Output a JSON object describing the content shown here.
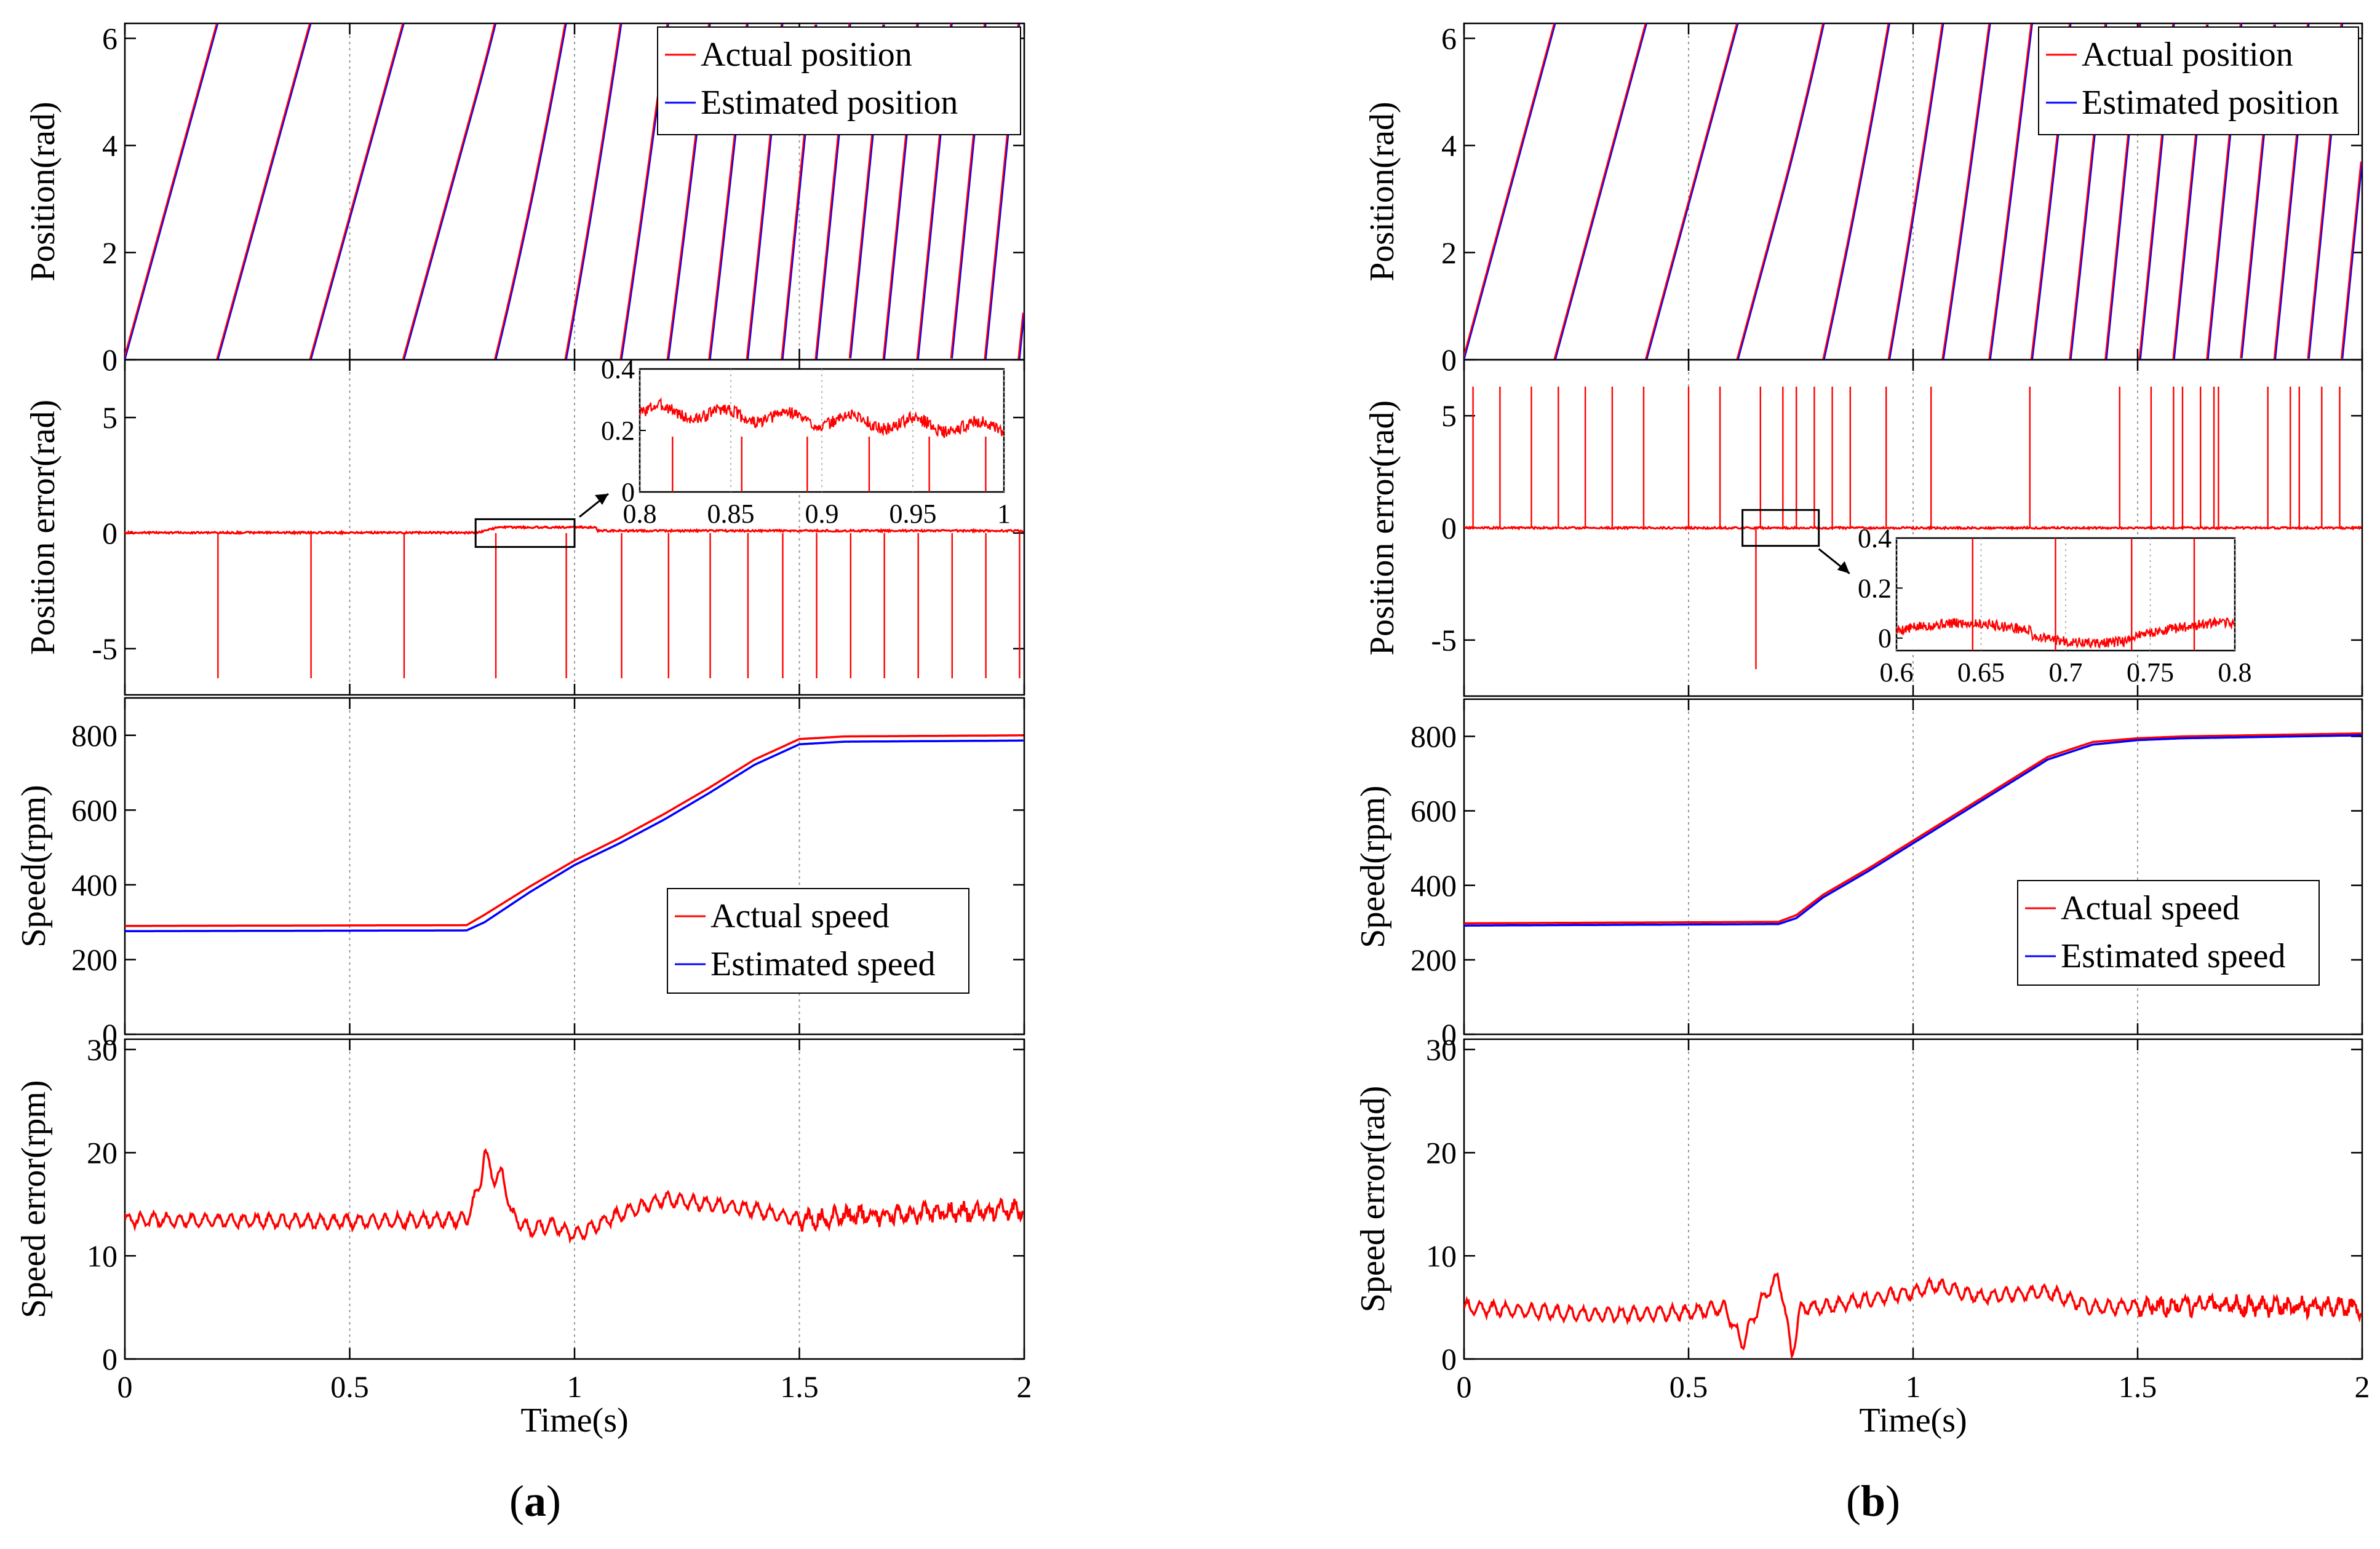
{
  "figure": {
    "colors": {
      "actual": "#ff0000",
      "estimated": "#0000ff",
      "axis": "#000000",
      "grid": "#9a9a9a"
    },
    "xlabel": "Time(s)",
    "x_ticks": [
      "0",
      "0.5",
      "1",
      "1.5",
      "2"
    ]
  },
  "chart_data": [
    {
      "panel": "a",
      "caption": "(a)",
      "subplots": [
        {
          "type": "line",
          "ylabel": "Position(rad)",
          "xlim": [
            0,
            2
          ],
          "ylim": [
            0,
            6.28
          ],
          "y_ticks": [
            "0",
            "2",
            "4",
            "6"
          ],
          "legend": {
            "placement": "top-right",
            "entries": [
              "Actual position",
              "Estimated position"
            ]
          },
          "series": [
            {
              "name": "Actual position",
              "kind": "sawtooth",
              "color": "red"
            },
            {
              "name": "Estimated position",
              "kind": "sawtooth",
              "color": "blue"
            }
          ],
          "speed_profile_rpm": {
            "t": [
              0,
              0.78,
              1.45,
              2
            ],
            "rpm": [
              290,
              290,
              795,
              800
            ]
          }
        },
        {
          "type": "line",
          "ylabel": "Position error(rad)",
          "xlim": [
            0,
            2
          ],
          "ylim": [
            -7,
            7.5
          ],
          "y_ticks": [
            "-5",
            "0",
            "5"
          ],
          "series": [
            {
              "name": "Position error",
              "color": "red",
              "wrap_spikes": -6.28
            }
          ],
          "inset": {
            "xlim": [
              0.8,
              1
            ],
            "ylim": [
              0,
              0.4
            ],
            "x_ticks": [
              "0.8",
              "0.85",
              "0.9",
              "0.95",
              "1"
            ],
            "y_ticks": [
              "0",
              "0.2",
              "0.4"
            ],
            "spike_x": [
              0.818,
              0.856,
              0.892,
              0.926,
              0.959,
              0.99
            ]
          }
        },
        {
          "type": "line",
          "ylabel": "Speed(rpm)",
          "xlim": [
            0,
            2
          ],
          "ylim": [
            0,
            900
          ],
          "y_ticks": [
            "0",
            "200",
            "400",
            "600",
            "800"
          ],
          "legend": {
            "placement": "center-right",
            "entries": [
              "Actual speed",
              "Estimated speed"
            ]
          },
          "series": [
            {
              "name": "Actual speed",
              "x": [
                0,
                0.76,
                0.8,
                0.9,
                1.0,
                1.1,
                1.2,
                1.3,
                1.4,
                1.5,
                1.6,
                2.0
              ],
              "y": [
                290,
                292,
                320,
                395,
                465,
                525,
                590,
                660,
                735,
                790,
                797,
                800
              ]
            },
            {
              "name": "Estimated speed",
              "x": [
                0,
                0.76,
                0.8,
                0.9,
                1.0,
                1.1,
                1.2,
                1.3,
                1.4,
                1.5,
                1.6,
                2.0
              ],
              "y": [
                276,
                278,
                300,
                380,
                453,
                511,
                575,
                646,
                721,
                776,
                783,
                786
              ]
            }
          ]
        },
        {
          "type": "line",
          "ylabel": "Speed error(rpm)",
          "xlim": [
            0,
            2
          ],
          "ylim": [
            0,
            31
          ],
          "y_ticks": [
            "0",
            "10",
            "20",
            "30"
          ],
          "series": [
            {
              "name": "Speed error",
              "x": [
                0,
                0.5,
                0.76,
                0.79,
                0.8,
                0.82,
                0.84,
                0.86,
                0.9,
                0.95,
                1.0,
                1.1,
                1.2,
                1.3,
                1.4,
                1.5,
                1.7,
                2.0
              ],
              "y": [
                13.5,
                13.3,
                13.5,
                17,
                20,
                17.5,
                18,
                14,
                12.5,
                13,
                12,
                14,
                15.5,
                15,
                14.5,
                13.5,
                14,
                14.5
              ]
            }
          ]
        }
      ]
    },
    {
      "panel": "b",
      "caption": "(b)",
      "subplots": [
        {
          "type": "line",
          "ylabel": "Position(rad)",
          "xlim": [
            0,
            2
          ],
          "ylim": [
            0,
            6.28
          ],
          "y_ticks": [
            "0",
            "2",
            "4",
            "6"
          ],
          "legend": {
            "placement": "top-right",
            "entries": [
              "Actual position",
              "Estimated position"
            ]
          },
          "series": [
            {
              "name": "Actual position",
              "kind": "sawtooth",
              "color": "red"
            },
            {
              "name": "Estimated position",
              "kind": "sawtooth",
              "color": "blue"
            }
          ],
          "speed_profile_rpm": {
            "t": [
              0,
              0.7,
              1.45,
              2
            ],
            "rpm": [
              295,
              295,
              795,
              805
            ]
          }
        },
        {
          "type": "line",
          "ylabel": "Position error(rad)",
          "xlim": [
            0,
            2
          ],
          "ylim": [
            -7.5,
            7.5
          ],
          "y_ticks": [
            "-5",
            "0",
            "5"
          ],
          "series": [
            {
              "name": "Position error",
              "color": "red",
              "spike_x_pos": [
                0.02,
                0.08,
                0.15,
                0.21,
                0.27,
                0.33,
                0.4,
                0.5,
                0.57,
                0.66,
                0.71,
                0.74,
                0.78,
                0.82,
                0.86,
                0.94,
                1.04,
                1.26,
                1.46,
                1.53,
                1.58,
                1.6,
                1.64,
                1.67,
                1.68,
                1.79,
                1.84,
                1.86,
                1.91,
                1.95
              ],
              "spike_x_neg": [
                0.65
              ]
            }
          ],
          "inset": {
            "xlim": [
              0.6,
              0.8
            ],
            "ylim": [
              -0.05,
              0.4
            ],
            "x_ticks": [
              "0.6",
              "0.65",
              "0.7",
              "0.75",
              "0.8"
            ],
            "y_ticks": [
              "0",
              "0.2",
              "0.4"
            ],
            "spike_x": [
              0.645,
              0.694,
              0.739,
              0.776
            ]
          }
        },
        {
          "type": "line",
          "ylabel": "Speed(rpm)",
          "xlim": [
            0,
            2
          ],
          "ylim": [
            0,
            900
          ],
          "y_ticks": [
            "0",
            "200",
            "400",
            "600",
            "800"
          ],
          "legend": {
            "placement": "center-right",
            "entries": [
              "Actual speed",
              "Estimated speed"
            ]
          },
          "series": [
            {
              "name": "Actual speed",
              "x": [
                0,
                0.7,
                0.74,
                0.8,
                0.9,
                1.0,
                1.1,
                1.2,
                1.3,
                1.4,
                1.5,
                1.6,
                2.0
              ],
              "y": [
                298,
                302,
                320,
                375,
                445,
                520,
                595,
                670,
                745,
                785,
                795,
                800,
                808
              ]
            },
            {
              "name": "Estimated speed",
              "x": [
                0,
                0.7,
                0.74,
                0.8,
                0.9,
                1.0,
                1.1,
                1.2,
                1.3,
                1.4,
                1.5,
                1.6,
                2.0
              ],
              "y": [
                292,
                296,
                312,
                368,
                438,
                513,
                588,
                663,
                738,
                778,
                790,
                795,
                803
              ]
            }
          ]
        },
        {
          "type": "line",
          "ylabel": "Speed error(rad)",
          "xlim": [
            0,
            2
          ],
          "ylim": [
            0,
            31
          ],
          "y_ticks": [
            "0",
            "10",
            "20",
            "30"
          ],
          "series": [
            {
              "name": "Speed error",
              "x": [
                0,
                0.3,
                0.5,
                0.58,
                0.62,
                0.66,
                0.7,
                0.71,
                0.73,
                0.75,
                0.8,
                0.9,
                1.0,
                1.05,
                1.15,
                1.3,
                1.4,
                1.6,
                2.0
              ],
              "y": [
                5,
                4.3,
                4.5,
                5,
                1.5,
                5.5,
                8,
                6,
                0.3,
                5,
                5,
                5.8,
                6.5,
                7.2,
                6,
                6.5,
                5,
                5.2,
                5
              ]
            }
          ]
        }
      ]
    }
  ]
}
